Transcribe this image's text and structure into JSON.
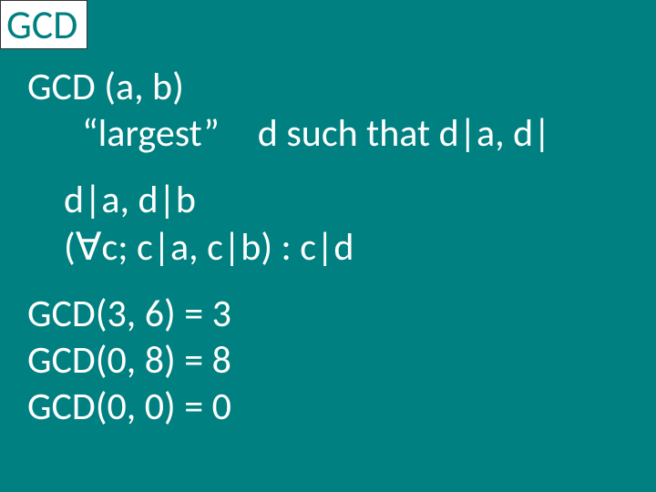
{
  "slide": {
    "background_color": "#008080",
    "text_color": "#ffffff",
    "title_bg": "#ffffff",
    "title_fg": "#008080",
    "font_family": "Segoe UI",
    "title_fontsize": 44,
    "body_fontsize": 42,
    "title": "GCD",
    "heading": "GCD (a, b)",
    "definition": "“largest” d such that d|a, d|",
    "prop1": "d|a, d|b",
    "prop2": "(∀c; c|a, c|b) : c|d",
    "examples": [
      "GCD(3, 6) = 3",
      "GCD(0, 8) = 8",
      "GCD(0, 0) = 0"
    ]
  }
}
